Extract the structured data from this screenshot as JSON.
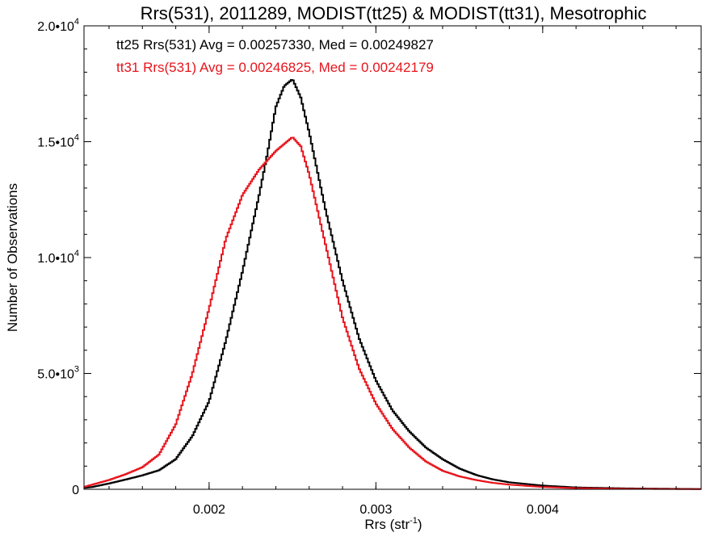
{
  "chart_data": {
    "type": "line",
    "step": true,
    "title": "Rrs(531), 2011289, MODIST(tt25) & MODIST(tt31), Mesotrophic",
    "xlabel": "Rrs (str",
    "xlabel_sup": "-1",
    "xlabel_close": ")",
    "ylabel": "Number of Observations",
    "xlim": [
      0.00125,
      0.00495
    ],
    "ylim": [
      0,
      20000
    ],
    "xticks": [
      {
        "value": 0.002,
        "label": "0.002"
      },
      {
        "value": 0.003,
        "label": "0.003"
      },
      {
        "value": 0.004,
        "label": "0.004"
      }
    ],
    "yticks": [
      {
        "value": 0,
        "mant": "0",
        "exp": ""
      },
      {
        "value": 5000,
        "mant": "5.0•10",
        "exp": "3"
      },
      {
        "value": 10000,
        "mant": "1.0•10",
        "exp": "4"
      },
      {
        "value": 15000,
        "mant": "1.5•10",
        "exp": "4"
      },
      {
        "value": 20000,
        "mant": "2.0•10",
        "exp": "4"
      }
    ],
    "grid": false,
    "legend_position": "top-left",
    "series": [
      {
        "name": "tt25",
        "annotation": "tt25 Rrs(531) Avg = 0.00257330, Med = 0.00249827",
        "color": "#000000",
        "points": [
          [
            0.00125,
            60
          ],
          [
            0.0013,
            100
          ],
          [
            0.0014,
            250
          ],
          [
            0.0015,
            420
          ],
          [
            0.0016,
            600
          ],
          [
            0.0017,
            820
          ],
          [
            0.0018,
            1300
          ],
          [
            0.0019,
            2300
          ],
          [
            0.002,
            3800
          ],
          [
            0.0021,
            6400
          ],
          [
            0.0022,
            9400
          ],
          [
            0.0023,
            12700
          ],
          [
            0.00235,
            14500
          ],
          [
            0.0024,
            16500
          ],
          [
            0.00245,
            17400
          ],
          [
            0.0025,
            17700
          ],
          [
            0.00255,
            16900
          ],
          [
            0.0026,
            15400
          ],
          [
            0.0027,
            12000
          ],
          [
            0.0028,
            9000
          ],
          [
            0.0029,
            6500
          ],
          [
            0.003,
            4700
          ],
          [
            0.0031,
            3400
          ],
          [
            0.0032,
            2500
          ],
          [
            0.0033,
            1800
          ],
          [
            0.0034,
            1300
          ],
          [
            0.0035,
            900
          ],
          [
            0.0036,
            620
          ],
          [
            0.0037,
            430
          ],
          [
            0.0038,
            300
          ],
          [
            0.004,
            160
          ],
          [
            0.0042,
            80
          ],
          [
            0.0045,
            40
          ],
          [
            0.0049,
            15
          ]
        ]
      },
      {
        "name": "tt31",
        "annotation": "tt31 Rrs(531) Avg = 0.00246825, Med = 0.00242179",
        "color": "#e8141c",
        "points": [
          [
            0.00125,
            100
          ],
          [
            0.0013,
            200
          ],
          [
            0.0014,
            400
          ],
          [
            0.0015,
            650
          ],
          [
            0.0016,
            950
          ],
          [
            0.0017,
            1500
          ],
          [
            0.0018,
            2800
          ],
          [
            0.0019,
            5000
          ],
          [
            0.002,
            7800
          ],
          [
            0.0021,
            10800
          ],
          [
            0.0022,
            12700
          ],
          [
            0.0023,
            13800
          ],
          [
            0.0024,
            14600
          ],
          [
            0.0025,
            15200
          ],
          [
            0.00255,
            14800
          ],
          [
            0.0026,
            13600
          ],
          [
            0.0027,
            10500
          ],
          [
            0.0028,
            7400
          ],
          [
            0.0029,
            5200
          ],
          [
            0.003,
            3700
          ],
          [
            0.0031,
            2600
          ],
          [
            0.0032,
            1800
          ],
          [
            0.0033,
            1200
          ],
          [
            0.0034,
            800
          ],
          [
            0.0035,
            560
          ],
          [
            0.0036,
            400
          ],
          [
            0.0037,
            280
          ],
          [
            0.0038,
            200
          ],
          [
            0.004,
            100
          ],
          [
            0.0042,
            50
          ],
          [
            0.0045,
            20
          ],
          [
            0.0049,
            8
          ]
        ]
      }
    ]
  }
}
